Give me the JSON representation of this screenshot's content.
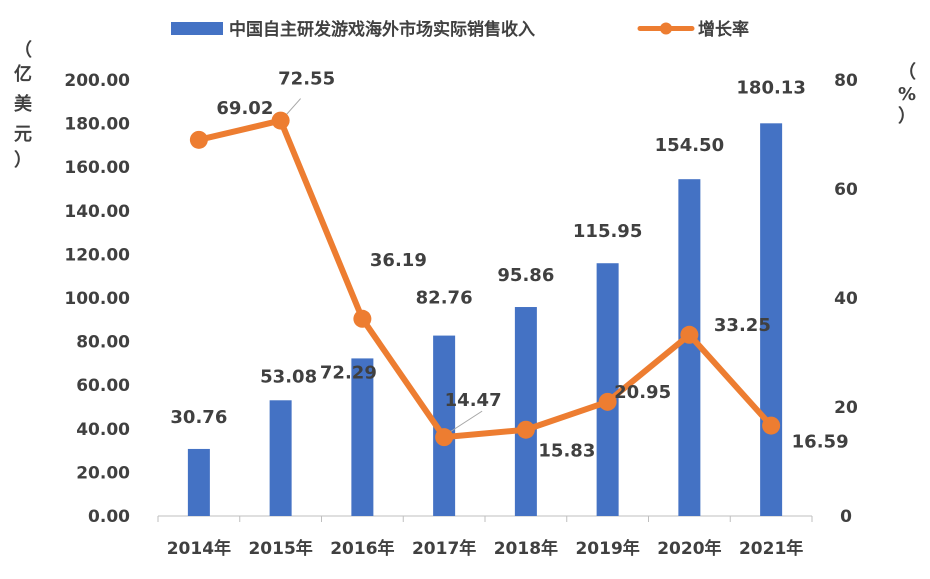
{
  "chart_data": {
    "type": "bar",
    "categories": [
      "2014年",
      "2015年",
      "2016年",
      "2017年",
      "2018年",
      "2019年",
      "2020年",
      "2021年"
    ],
    "series": [
      {
        "name": "中国自主研发游戏海外市场实际销售收入",
        "type": "bar",
        "axis": "left",
        "values": [
          30.76,
          53.08,
          72.29,
          82.76,
          95.86,
          115.95,
          154.5,
          180.13
        ],
        "labels": [
          "30.76",
          "53.08",
          "72.29",
          "82.76",
          "95.86",
          "115.95",
          "154.50",
          "180.13"
        ],
        "color": "#4472C4"
      },
      {
        "name": "增长率",
        "type": "line",
        "axis": "right",
        "values": [
          69.02,
          72.55,
          36.19,
          14.47,
          15.83,
          20.95,
          33.25,
          16.59
        ],
        "labels": [
          "69.02",
          "72.55",
          "36.19",
          "14.47",
          "15.83",
          "20.95",
          "33.25",
          "16.59"
        ],
        "color": "#ED7D31"
      }
    ],
    "y_left": {
      "unit_label": [
        "（",
        "亿",
        "美",
        "元",
        "）"
      ],
      "ylim": [
        0,
        200
      ],
      "ticks": [
        "0.00",
        "20.00",
        "40.00",
        "60.00",
        "80.00",
        "100.00",
        "120.00",
        "140.00",
        "160.00",
        "180.00",
        "200.00"
      ]
    },
    "y_right": {
      "unit_label": [
        "（",
        "%",
        "）"
      ],
      "ylim": [
        0,
        80
      ],
      "ticks": [
        "0",
        "20",
        "40",
        "60",
        "80"
      ]
    },
    "grid": false,
    "legend": "top"
  }
}
